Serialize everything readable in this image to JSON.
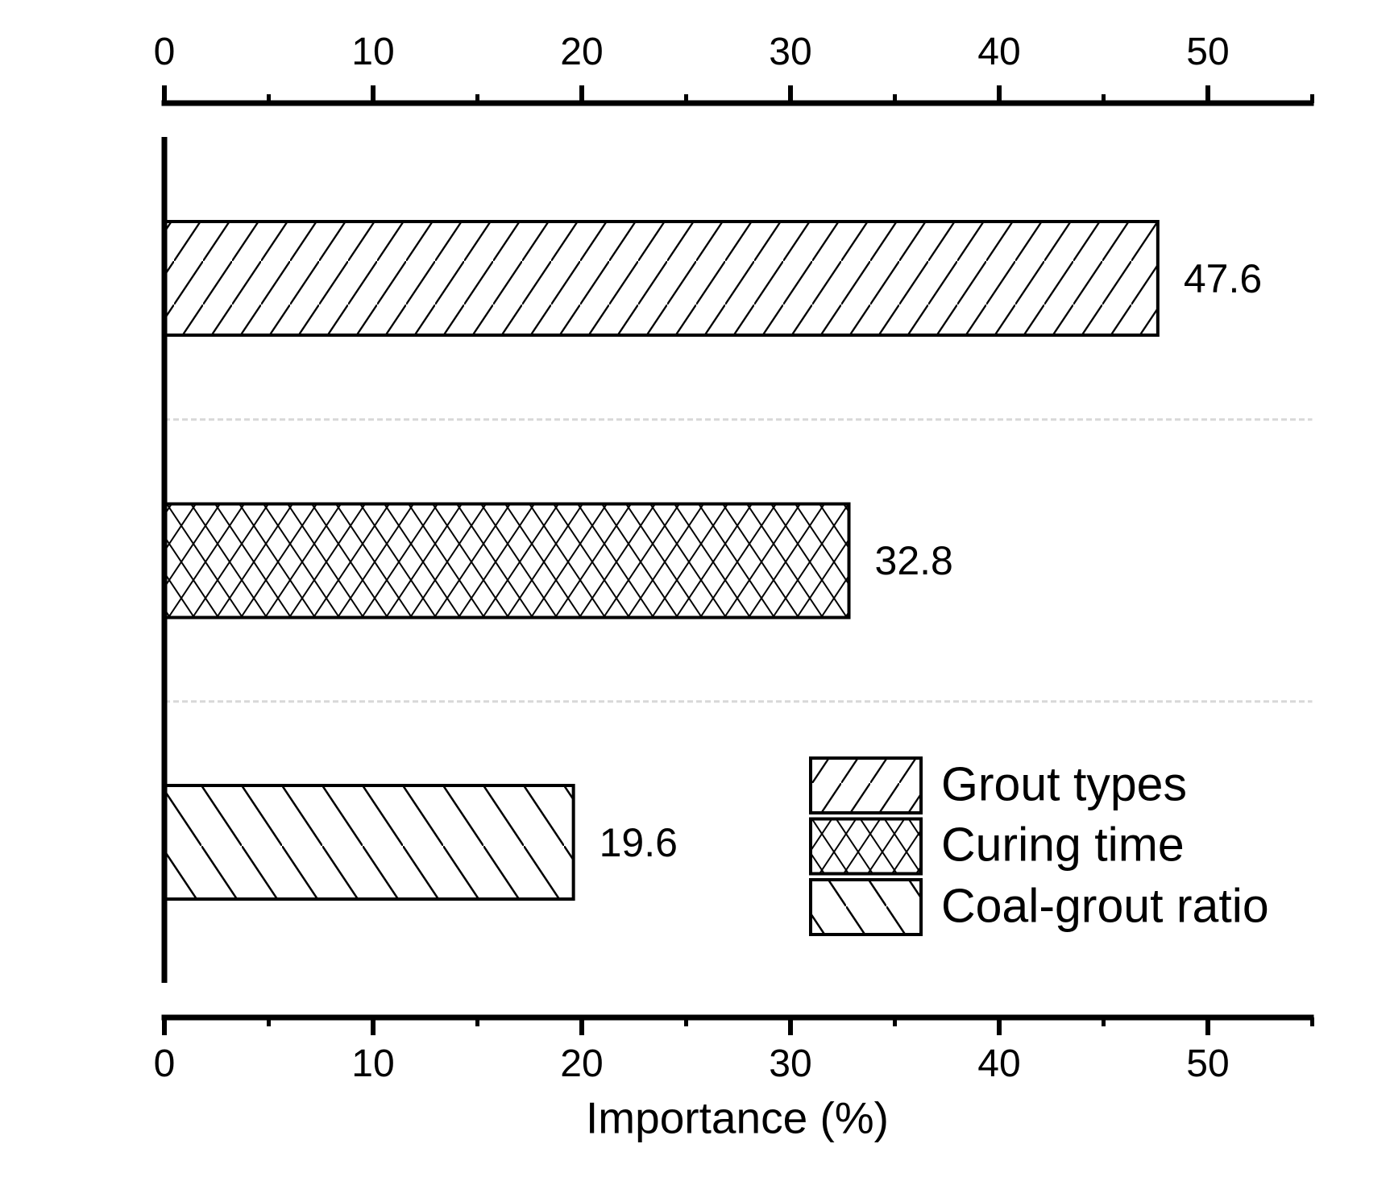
{
  "chart_data": {
    "type": "bar",
    "orientation": "horizontal",
    "title": "",
    "xlabel": "Importance (%)",
    "ylabel": "",
    "xlim": [
      0,
      55
    ],
    "x_major_ticks": [
      0,
      10,
      20,
      30,
      40,
      50
    ],
    "x_minor_ticks": [
      5,
      15,
      25,
      35,
      45,
      55
    ],
    "grid": "light dashed horizontal separators between bars",
    "categories": [
      "Grout types",
      "Curing time",
      "Coal-grout ratio"
    ],
    "values": [
      47.6,
      32.8,
      19.6
    ],
    "value_labels": [
      "47.6",
      "32.8",
      "19.6"
    ],
    "bar_patterns": [
      "forward-diagonal-hatch",
      "crosshatch",
      "back-diagonal-hatch"
    ],
    "legend": {
      "position": "lower-right",
      "entries": [
        {
          "label": "Grout types",
          "pattern": "forward-diagonal-hatch"
        },
        {
          "label": "Curing time",
          "pattern": "crosshatch"
        },
        {
          "label": "Coal-grout ratio",
          "pattern": "back-diagonal-hatch"
        }
      ]
    },
    "colors": {
      "bar_fill": "#ffffff",
      "bar_border": "#000000",
      "hatch": "#000000",
      "axis": "#000000",
      "text": "#000000",
      "separator_dash": "#d8d8d8",
      "background": "#ffffff"
    }
  }
}
